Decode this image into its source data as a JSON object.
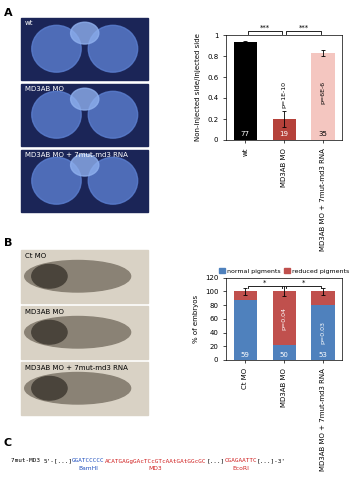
{
  "panel_labels": [
    "A",
    "B",
    "C"
  ],
  "image_labels": {
    "A": [
      "wt",
      "MD3AB MO",
      "MD3AB MO + 7mut-md3 RNA"
    ],
    "B": [
      "Ct MO",
      "MD3AB MO",
      "MD3AB MO + 7mut-md3 RNA"
    ]
  },
  "chart_data": [
    {
      "type": "bar",
      "ylabel": "Non-injected side/injected side",
      "categories": [
        "wt",
        "MD3AB MO",
        "MD3AB MO + 7mut-md3 RNA"
      ],
      "values": [
        0.93,
        0.2,
        0.83
      ],
      "errors": [
        0.01,
        0.08,
        0.03
      ],
      "colors": [
        "#000000",
        "#b5413a",
        "#f4c6c0"
      ],
      "n_labels": [
        "77",
        "19",
        "35"
      ],
      "p_labels": [
        null,
        "p=1E-10",
        "p=6E-6"
      ],
      "significance": [
        {
          "from": "wt",
          "to": "MD3AB MO",
          "label": "***"
        },
        {
          "from": "MD3AB MO",
          "to": "MD3AB MO + 7mut-md3 RNA",
          "label": "***"
        }
      ],
      "ylim": [
        0,
        1
      ],
      "yticks": [
        0,
        0.2,
        0.4,
        0.6,
        0.8,
        1
      ]
    },
    {
      "type": "bar",
      "stacked": true,
      "ylabel": "% of embryos",
      "categories": [
        "Ct MO",
        "MD3AB MO",
        "MD3AB MO + 7mut-md3 RNA"
      ],
      "series": [
        {
          "name": "normal pigments",
          "color": "#4f81bd",
          "values": [
            87,
            22,
            80
          ]
        },
        {
          "name": "reduced pigments",
          "color": "#c0504d",
          "values": [
            13,
            78,
            20
          ],
          "errors": [
            5,
            7,
            5
          ]
        }
      ],
      "n_labels": [
        "59",
        "50",
        "53"
      ],
      "p_labels": [
        null,
        "p=0.04",
        "p=0.03"
      ],
      "significance": [
        {
          "from": "Ct MO",
          "to": "MD3AB MO",
          "label": "*"
        },
        {
          "from": "MD3AB MO",
          "to": "MD3AB MO + 7mut-md3 RNA",
          "label": "*"
        }
      ],
      "legend": "upper center",
      "ylim": [
        0,
        120
      ],
      "yticks": [
        0,
        20,
        40,
        60,
        80,
        100,
        120
      ]
    }
  ],
  "sequence": {
    "name": "7mut-MD3",
    "segments": [
      {
        "text": "5'-[...]",
        "color": "#000000"
      },
      {
        "text": "GGATCCCCC",
        "color": "#1f4fbf",
        "site": "BamHI"
      },
      {
        "text": "ACATGAGgGAcTCcGTcAAtGAtGGcGC",
        "color": "#d02020",
        "site": "MD3"
      },
      {
        "text": "[...]",
        "color": "#000000"
      },
      {
        "text": "CGAGAATTC",
        "color": "#d02020",
        "site": "EcoRI"
      },
      {
        "text": "[...]-3'",
        "color": "#000000"
      }
    ]
  }
}
